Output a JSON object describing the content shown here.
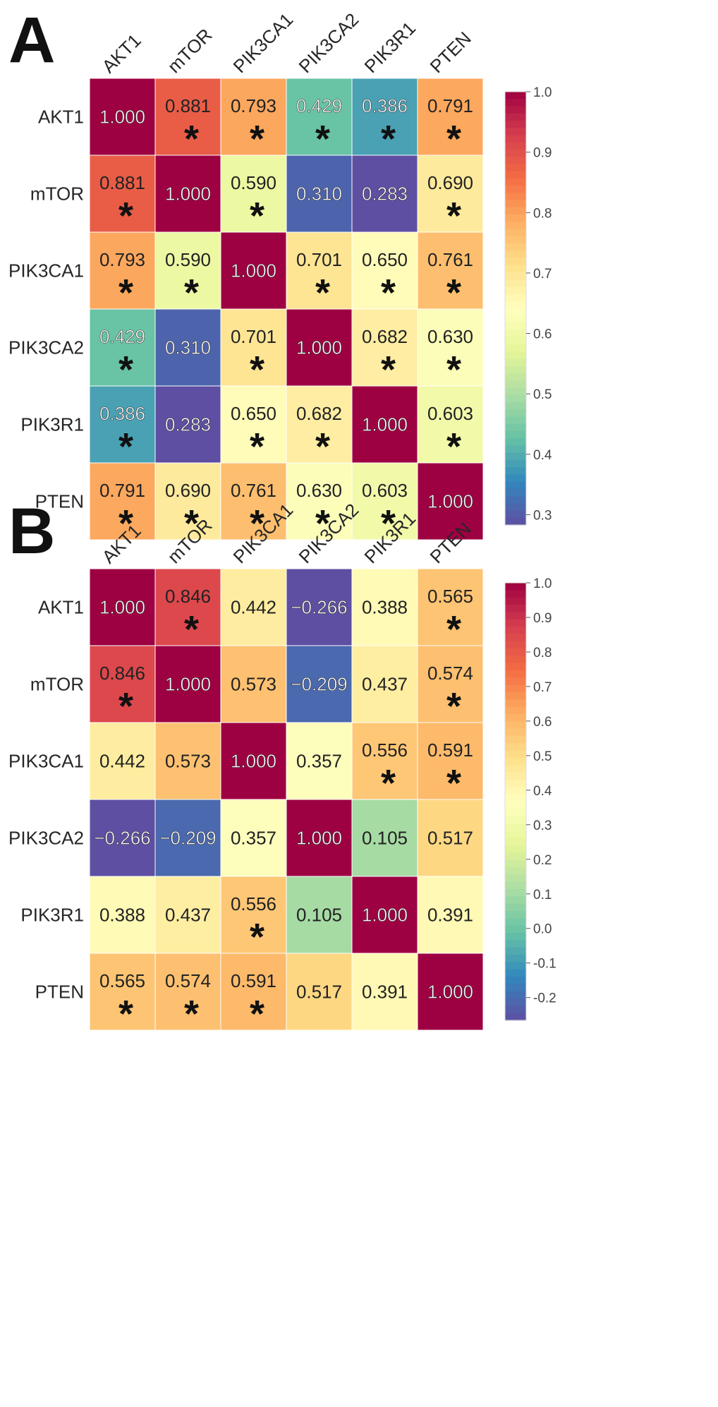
{
  "chart_data": [
    {
      "type": "heatmap",
      "panel_label": "A",
      "genes": [
        "AKT1",
        "mTOR",
        "PIK3CA1",
        "PIK3CA2",
        "PIK3R1",
        "PTEN"
      ],
      "values": [
        [
          1.0,
          0.881,
          0.793,
          0.429,
          0.386,
          0.791
        ],
        [
          0.881,
          1.0,
          0.59,
          0.31,
          0.283,
          0.69
        ],
        [
          0.793,
          0.59,
          1.0,
          0.701,
          0.65,
          0.761
        ],
        [
          0.429,
          0.31,
          0.701,
          1.0,
          0.682,
          0.63
        ],
        [
          0.386,
          0.283,
          0.65,
          0.682,
          1.0,
          0.603
        ],
        [
          0.791,
          0.69,
          0.761,
          0.63,
          0.603,
          1.0
        ]
      ],
      "labels": [
        [
          "1.000",
          "0.881",
          "0.793",
          "0.429",
          "0.386",
          "0.791"
        ],
        [
          "0.881",
          "1.000",
          "0.590",
          "0.310",
          "0.283",
          "0.690"
        ],
        [
          "0.793",
          "0.590",
          "1.000",
          "0.701",
          "0.650",
          "0.761"
        ],
        [
          "0.429",
          "0.310",
          "0.701",
          "1.000",
          "0.682",
          "0.630"
        ],
        [
          "0.386",
          "0.283",
          "0.650",
          "0.682",
          "1.000",
          "0.603"
        ],
        [
          "0.791",
          "0.690",
          "0.761",
          "0.630",
          "0.603",
          "1.000"
        ]
      ],
      "significant": [
        [
          false,
          true,
          true,
          true,
          true,
          true
        ],
        [
          true,
          false,
          true,
          false,
          false,
          true
        ],
        [
          true,
          true,
          false,
          true,
          true,
          true
        ],
        [
          true,
          false,
          true,
          false,
          true,
          true
        ],
        [
          true,
          false,
          true,
          true,
          false,
          true
        ],
        [
          true,
          true,
          true,
          true,
          true,
          false
        ]
      ],
      "significance_marker": "*",
      "colorbar": {
        "vmin": 0.283,
        "vmax": 1.0,
        "ticks": [
          0.3,
          0.4,
          0.5,
          0.6,
          0.7,
          0.8,
          0.9,
          1.0
        ],
        "tick_labels": [
          "0.3",
          "0.4",
          "0.5",
          "0.6",
          "0.7",
          "0.8",
          "0.9",
          "1.0"
        ]
      }
    },
    {
      "type": "heatmap",
      "panel_label": "B",
      "genes": [
        "AKT1",
        "mTOR",
        "PIK3CA1",
        "PIK3CA2",
        "PIK3R1",
        "PTEN"
      ],
      "values": [
        [
          1.0,
          0.846,
          0.442,
          -0.266,
          0.388,
          0.565
        ],
        [
          0.846,
          1.0,
          0.573,
          -0.209,
          0.437,
          0.574
        ],
        [
          0.442,
          0.573,
          1.0,
          0.357,
          0.556,
          0.591
        ],
        [
          -0.266,
          -0.209,
          0.357,
          1.0,
          0.105,
          0.517
        ],
        [
          0.388,
          0.437,
          0.556,
          0.105,
          1.0,
          0.391
        ],
        [
          0.565,
          0.574,
          0.591,
          0.517,
          0.391,
          1.0
        ]
      ],
      "labels": [
        [
          "1.000",
          "0.846",
          "0.442",
          "−0.266",
          "0.388",
          "0.565"
        ],
        [
          "0.846",
          "1.000",
          "0.573",
          "−0.209",
          "0.437",
          "0.574"
        ],
        [
          "0.442",
          "0.573",
          "1.000",
          "0.357",
          "0.556",
          "0.591"
        ],
        [
          "−0.266",
          "−0.209",
          "0.357",
          "1.000",
          "0.105",
          "0.517"
        ],
        [
          "0.388",
          "0.437",
          "0.556",
          "0.105",
          "1.000",
          "0.391"
        ],
        [
          "0.565",
          "0.574",
          "0.591",
          "0.517",
          "0.391",
          "1.000"
        ]
      ],
      "significant": [
        [
          false,
          true,
          false,
          false,
          false,
          true
        ],
        [
          true,
          false,
          false,
          false,
          false,
          true
        ],
        [
          false,
          false,
          false,
          false,
          true,
          true
        ],
        [
          false,
          false,
          false,
          false,
          false,
          false
        ],
        [
          false,
          false,
          true,
          false,
          false,
          false
        ],
        [
          true,
          true,
          true,
          false,
          false,
          false
        ]
      ],
      "significance_marker": "*",
      "colorbar": {
        "vmin": -0.266,
        "vmax": 1.0,
        "ticks": [
          -0.2,
          -0.1,
          0.0,
          0.1,
          0.2,
          0.3,
          0.4,
          0.5,
          0.6,
          0.7,
          0.8,
          0.9,
          1.0
        ],
        "tick_labels": [
          "-0.2",
          "-0.1",
          "0.0",
          "0.1",
          "0.2",
          "0.3",
          "0.4",
          "0.5",
          "0.6",
          "0.7",
          "0.8",
          "0.9",
          "1.0"
        ]
      }
    }
  ],
  "colormap": "Spectral_r",
  "colormap_stops": [
    "#5e4fa2",
    "#3288bd",
    "#66c2a5",
    "#abdda4",
    "#e6f598",
    "#ffffbf",
    "#fee08b",
    "#fdae61",
    "#f46d43",
    "#d53e4f",
    "#9e0142"
  ]
}
